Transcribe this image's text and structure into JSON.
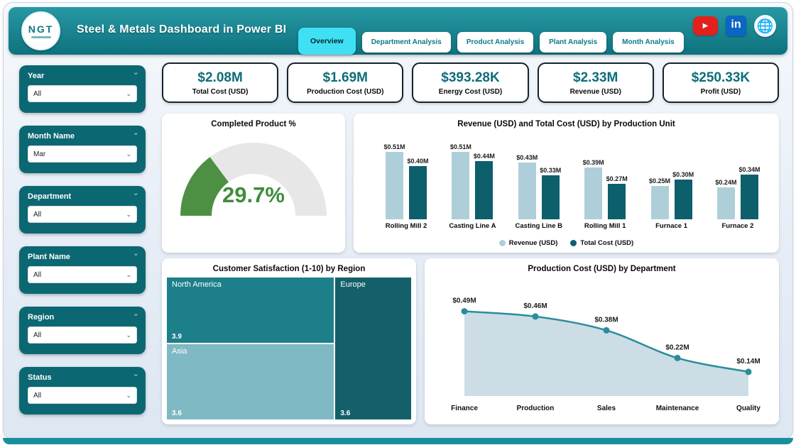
{
  "header": {
    "title": "Steel & Metals Dashboard in Power BI",
    "logo_text": "NGT",
    "tabs": [
      {
        "label": "Overview",
        "active": true
      },
      {
        "label": "Department Analysis",
        "active": false
      },
      {
        "label": "Product Analysis",
        "active": false
      },
      {
        "label": "Plant Analysis",
        "active": false
      },
      {
        "label": "Month Analysis",
        "active": false
      }
    ]
  },
  "icons": {
    "chevron": "⌄",
    "play": "▶",
    "linkedin": "in",
    "globe": "🌐"
  },
  "filters": [
    {
      "label": "Year",
      "value": "All"
    },
    {
      "label": "Month Name",
      "value": "Mar"
    },
    {
      "label": "Department",
      "value": "All"
    },
    {
      "label": "Plant Name",
      "value": "All"
    },
    {
      "label": "Region",
      "value": "All"
    },
    {
      "label": "Status",
      "value": "All"
    }
  ],
  "kpis": [
    {
      "value": "$2.08M",
      "label": "Total Cost (USD)"
    },
    {
      "value": "$1.69M",
      "label": "Production Cost (USD)"
    },
    {
      "value": "$393.28K",
      "label": "Energy Cost (USD)"
    },
    {
      "value": "$2.33M",
      "label": "Revenue (USD)"
    },
    {
      "value": "$250.33K",
      "label": "Profit (USD)"
    }
  ],
  "chart_data": [
    {
      "id": "gauge",
      "type": "gauge",
      "title": "Completed Product %",
      "value_pct": 29.7,
      "label": "29.7%",
      "color": "#4e9043",
      "track_color": "#e7e7e7"
    },
    {
      "id": "bar",
      "type": "bar",
      "title": "Revenue (USD) and Total Cost (USD) by Production Unit",
      "categories": [
        "Rolling Mill 2",
        "Casting Line A",
        "Casting Line B",
        "Rolling Mill 1",
        "Furnace 1",
        "Furnace 2"
      ],
      "series": [
        {
          "name": "Revenue (USD)",
          "color": "#aecfd9",
          "values": [
            0.51,
            0.51,
            0.43,
            0.39,
            0.25,
            0.24
          ],
          "labels": [
            "$0.51M",
            "$0.51M",
            "$0.43M",
            "$0.39M",
            "$0.25M",
            "$0.24M"
          ]
        },
        {
          "name": "Total Cost (USD)",
          "color": "#0d5f6b",
          "values": [
            0.4,
            0.44,
            0.33,
            0.27,
            0.3,
            0.34
          ],
          "labels": [
            "$0.40M",
            "$0.44M",
            "$0.33M",
            "$0.27M",
            "$0.30M",
            "$0.34M"
          ]
        }
      ],
      "ymax": 0.6,
      "legend_position": "bottom"
    },
    {
      "id": "treemap",
      "type": "treemap",
      "title": "Customer Satisfaction (1-10) by Region",
      "nodes": [
        {
          "name": "North America",
          "value": "3.9",
          "color": "#1d7f8a"
        },
        {
          "name": "Europe",
          "value": "3.6",
          "color": "#14606a"
        },
        {
          "name": "Asia",
          "value": "3.6",
          "color": "#7fb9c3"
        }
      ]
    },
    {
      "id": "line",
      "type": "area",
      "title": "Production Cost (USD) by Department",
      "categories": [
        "Finance",
        "Production",
        "Sales",
        "Maintenance",
        "Quality"
      ],
      "values": [
        0.49,
        0.46,
        0.38,
        0.22,
        0.14
      ],
      "labels": [
        "$0.49M",
        "$0.46M",
        "$0.38M",
        "$0.22M",
        "$0.14M"
      ],
      "ymax": 0.55,
      "line_color": "#2b8c9b",
      "fill_color": "#ccdde5",
      "grid": false
    }
  ]
}
